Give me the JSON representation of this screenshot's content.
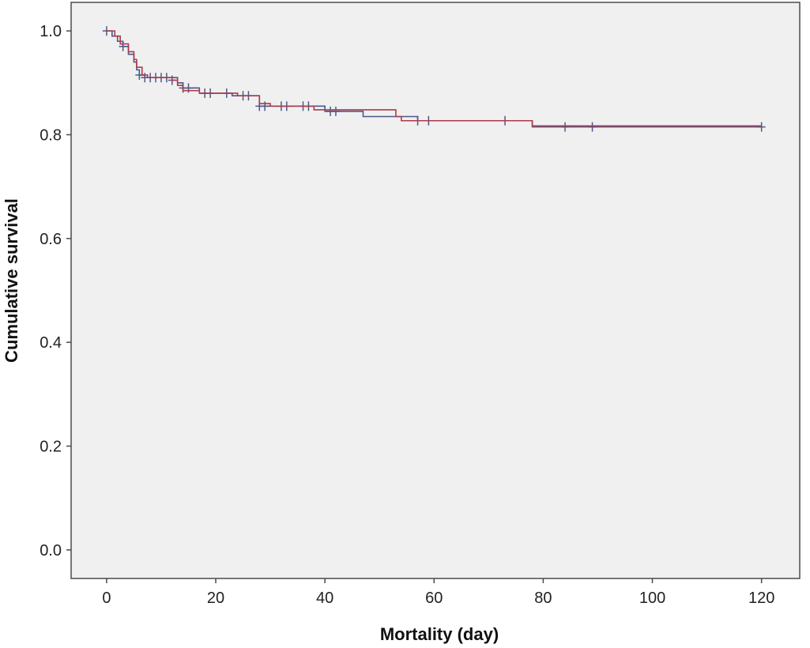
{
  "chart_data": {
    "type": "line",
    "subtype": "kaplan-meier survival curve",
    "title": "",
    "xlabel": "Mortality (day)",
    "ylabel": "Cumulative survival",
    "xlim": [
      -6.5,
      127
    ],
    "ylim": [
      -0.055,
      1.055
    ],
    "x_ticks": [
      0,
      20,
      40,
      60,
      80,
      100,
      120
    ],
    "x_tick_labels": [
      "0",
      "20",
      "40",
      "60",
      "80",
      "100",
      "120"
    ],
    "y_ticks": [
      0.0,
      0.2,
      0.4,
      0.6,
      0.8,
      1.0
    ],
    "y_tick_labels": [
      "0.0",
      "0.2",
      "0.4",
      "0.6",
      "0.8",
      "1.0"
    ],
    "grid": false,
    "legend": "none",
    "background": "#f0f0f0",
    "series": [
      {
        "color": "#4a5a8a",
        "steps": [
          [
            0,
            1.0
          ],
          [
            1,
            0.99
          ],
          [
            2,
            0.98
          ],
          [
            3,
            0.97
          ],
          [
            4,
            0.955
          ],
          [
            5,
            0.94
          ],
          [
            5.5,
            0.925
          ],
          [
            6,
            0.915
          ],
          [
            7,
            0.91
          ],
          [
            13,
            0.9
          ],
          [
            14,
            0.89
          ],
          [
            17,
            0.88
          ],
          [
            23,
            0.875
          ],
          [
            28,
            0.855
          ],
          [
            40,
            0.845
          ],
          [
            47,
            0.835
          ],
          [
            57,
            0.827
          ],
          [
            78,
            0.815
          ],
          [
            120,
            0.815
          ]
        ],
        "censored": [
          [
            0,
            1.0
          ],
          [
            3,
            0.97
          ],
          [
            6,
            0.915
          ],
          [
            7,
            0.91
          ],
          [
            8,
            0.91
          ],
          [
            9,
            0.91
          ],
          [
            10,
            0.91
          ],
          [
            11,
            0.91
          ],
          [
            12,
            0.905
          ],
          [
            14,
            0.89
          ],
          [
            15,
            0.89
          ],
          [
            18,
            0.88
          ],
          [
            19,
            0.88
          ],
          [
            22,
            0.88
          ],
          [
            25,
            0.875
          ],
          [
            26,
            0.875
          ],
          [
            28,
            0.855
          ],
          [
            29,
            0.855
          ],
          [
            32,
            0.855
          ],
          [
            33,
            0.855
          ],
          [
            36,
            0.855
          ],
          [
            37,
            0.855
          ],
          [
            41,
            0.845
          ],
          [
            42,
            0.845
          ],
          [
            57,
            0.827
          ],
          [
            59,
            0.827
          ],
          [
            73,
            0.827
          ],
          [
            84,
            0.815
          ],
          [
            89,
            0.815
          ],
          [
            120,
            0.815
          ]
        ]
      },
      {
        "color": "#b03a4a",
        "steps": [
          [
            0,
            1.0
          ],
          [
            1.5,
            0.99
          ],
          [
            2.5,
            0.975
          ],
          [
            4,
            0.96
          ],
          [
            5,
            0.945
          ],
          [
            5.5,
            0.93
          ],
          [
            6.5,
            0.915
          ],
          [
            7.5,
            0.91
          ],
          [
            12,
            0.905
          ],
          [
            13,
            0.895
          ],
          [
            14,
            0.885
          ],
          [
            17,
            0.88
          ],
          [
            24,
            0.875
          ],
          [
            28,
            0.86
          ],
          [
            30,
            0.855
          ],
          [
            38,
            0.848
          ],
          [
            53,
            0.835
          ],
          [
            54,
            0.827
          ],
          [
            78,
            0.817
          ],
          [
            120,
            0.817
          ]
        ],
        "censored": []
      }
    ]
  }
}
